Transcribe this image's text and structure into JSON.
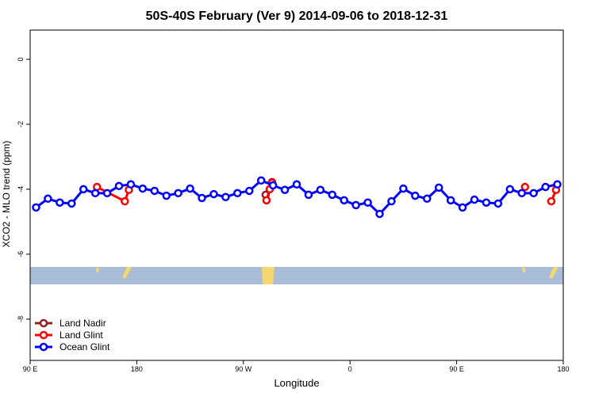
{
  "chart_data": {
    "type": "line",
    "title": "50S-40S February (Ver 9)   2014-09-06 to 2018-12-31",
    "x_label": "Longitude",
    "y_label": "XCO2 - MLO trend (ppm)",
    "xlim": [
      90,
      540
    ],
    "ylim": [
      -9.27,
      0.9
    ],
    "xticks": [
      {
        "value": 90,
        "label": "90 E"
      },
      180,
      {
        "value": 270,
        "label": "90 W"
      },
      {
        "value": 360,
        "label": "0"
      },
      {
        "value": 450,
        "label": "90 E"
      },
      {
        "value": 540,
        "label": "180"
      }
    ],
    "yticks": [
      0,
      -2,
      -4,
      -6,
      -8
    ],
    "legend": "bottom-left",
    "series": [
      {
        "name": "Land Nadir",
        "color": "#8b2323",
        "x": [
          288.8,
          294.2
        ],
        "values": [
          -4.17,
          -3.78
        ]
      },
      {
        "name": "Land Glint",
        "color": "#ff0000",
        "x": [
          146.4,
          169.9,
          173.3,
          null,
          289.5,
          292.2,
          294.2,
          null,
          507.7,
          null,
          529.9,
          533.9
        ],
        "values": [
          -3.93,
          -4.37,
          -4.02,
          null,
          -4.34,
          -4.0,
          -3.8,
          null,
          -3.93,
          null,
          -4.37,
          -4.02
        ]
      },
      {
        "name": "Ocean Glint",
        "color": "#0000ff",
        "x": [
          95,
          105,
          115,
          125,
          135,
          145,
          155,
          165,
          175,
          185,
          195,
          205,
          215,
          225,
          235,
          245,
          255,
          265,
          275,
          285,
          295,
          305,
          315,
          325,
          335,
          345,
          355,
          365,
          375,
          385,
          395,
          405,
          415,
          425,
          435,
          445,
          455,
          465,
          475,
          485,
          495,
          505,
          515,
          525,
          535
        ],
        "values": [
          -4.56,
          -4.29,
          -4.41,
          -4.44,
          -4.0,
          -4.12,
          -4.12,
          -3.9,
          -3.85,
          -3.98,
          -4.05,
          -4.2,
          -4.12,
          -3.98,
          -4.27,
          -4.15,
          -4.24,
          -4.12,
          -4.05,
          -3.73,
          -3.88,
          -4.02,
          -3.85,
          -4.17,
          -4.02,
          -4.17,
          -4.34,
          -4.49,
          -4.41,
          -4.76,
          -4.37,
          -3.98,
          -4.2,
          -4.29,
          -3.95,
          -4.34,
          -4.56,
          -4.32,
          -4.41,
          -4.44,
          -4.0,
          -4.12,
          -4.12,
          -3.93,
          -3.85
        ]
      }
    ]
  }
}
